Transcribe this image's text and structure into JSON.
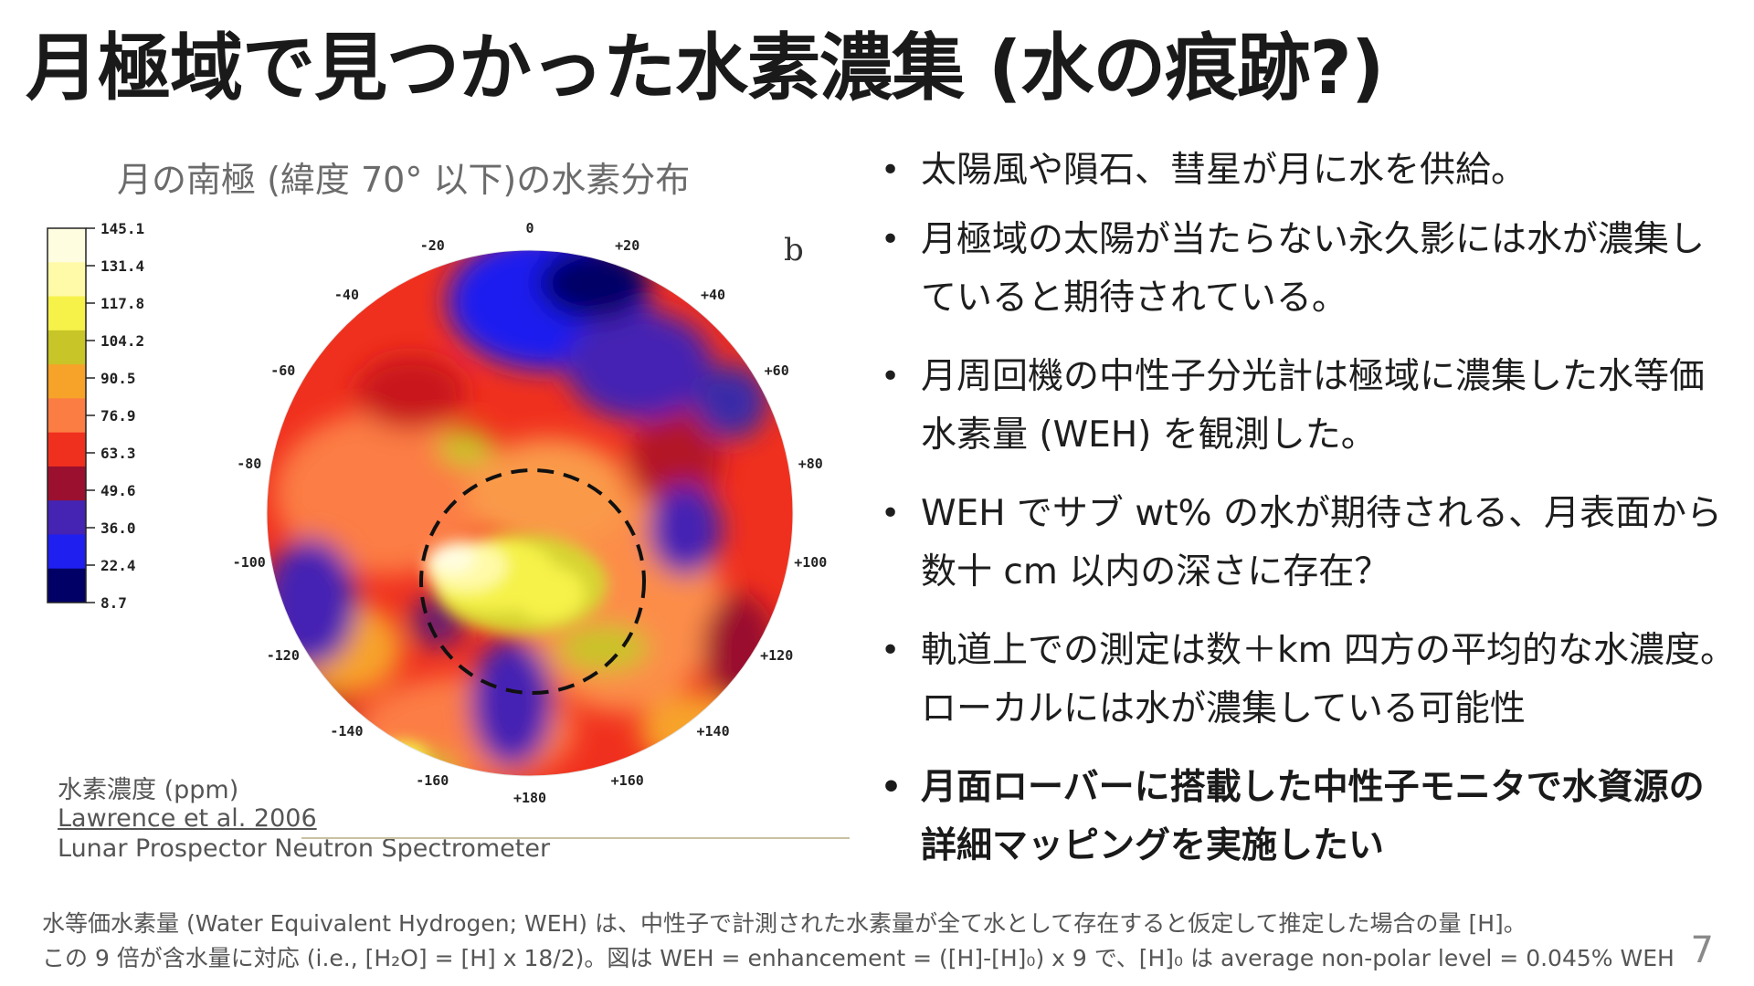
{
  "slide": {
    "title": "月極域で見つかった水素濃集 (水の痕跡?)",
    "page_number": "7"
  },
  "figure": {
    "caption": "月の南極 (緯度 70° 以下)の水素分布",
    "panel_letter": "b",
    "legend_values": [
      "145.1",
      "131.4",
      "117.8",
      "104.2",
      "90.5",
      "76.9",
      "63.3",
      "49.6",
      "36.0",
      "22.4",
      "8.7"
    ],
    "legend_colors": [
      "#fffde0",
      "#fffaa8",
      "#f6f24a",
      "#c7c527",
      "#f7a329",
      "#fc7d44",
      "#f0301e",
      "#9a102e",
      "#4524b3",
      "#1f1ff0",
      "#000066"
    ],
    "longitude_labels": [
      "0",
      "+20",
      "+40",
      "+60",
      "+80",
      "+100",
      "+120",
      "+140",
      "+160",
      "+180",
      "-160",
      "-140",
      "-120",
      "-100",
      "-80",
      "-60",
      "-40",
      "-20"
    ],
    "legend_title": "水素濃度 (ppm)",
    "reference": "Lawrence et al. 2006",
    "instrument": "Lunar Prospector Neutron Spectrometer"
  },
  "bullets": [
    "太陽風や隕石、彗星が月に水を供給。",
    "月極域の太陽が当たらない永久影には水が濃集していると期待されている。",
    "月周回機の中性子分光計は極域に濃集した水等価水素量 (WEH) を観測した。",
    "WEH でサブ wt% の水が期待される、月表面から数十 cm 以内の深さに存在？",
    "軌道上での測定は数＋km 四方の平均的な水濃度。ローカルには水が濃集している可能性",
    "月面ローバーに搭載した中性子モニタで水資源の詳細マッピングを実施したい"
  ],
  "footnote": {
    "line1": "水等価水素量 (Water Equivalent Hydrogen; WEH) は、中性子で計測された水素量が全て水として存在すると仮定して推定した場合の量 [H]。",
    "line2": "この 9 倍が含水量に対応 (i.e., [H₂O] = [H] x 18/2)。図は WEH = enhancement = ([H]-[H]₀) x 9 で、[H]₀ は average non-polar level = 0.045% WEH"
  }
}
